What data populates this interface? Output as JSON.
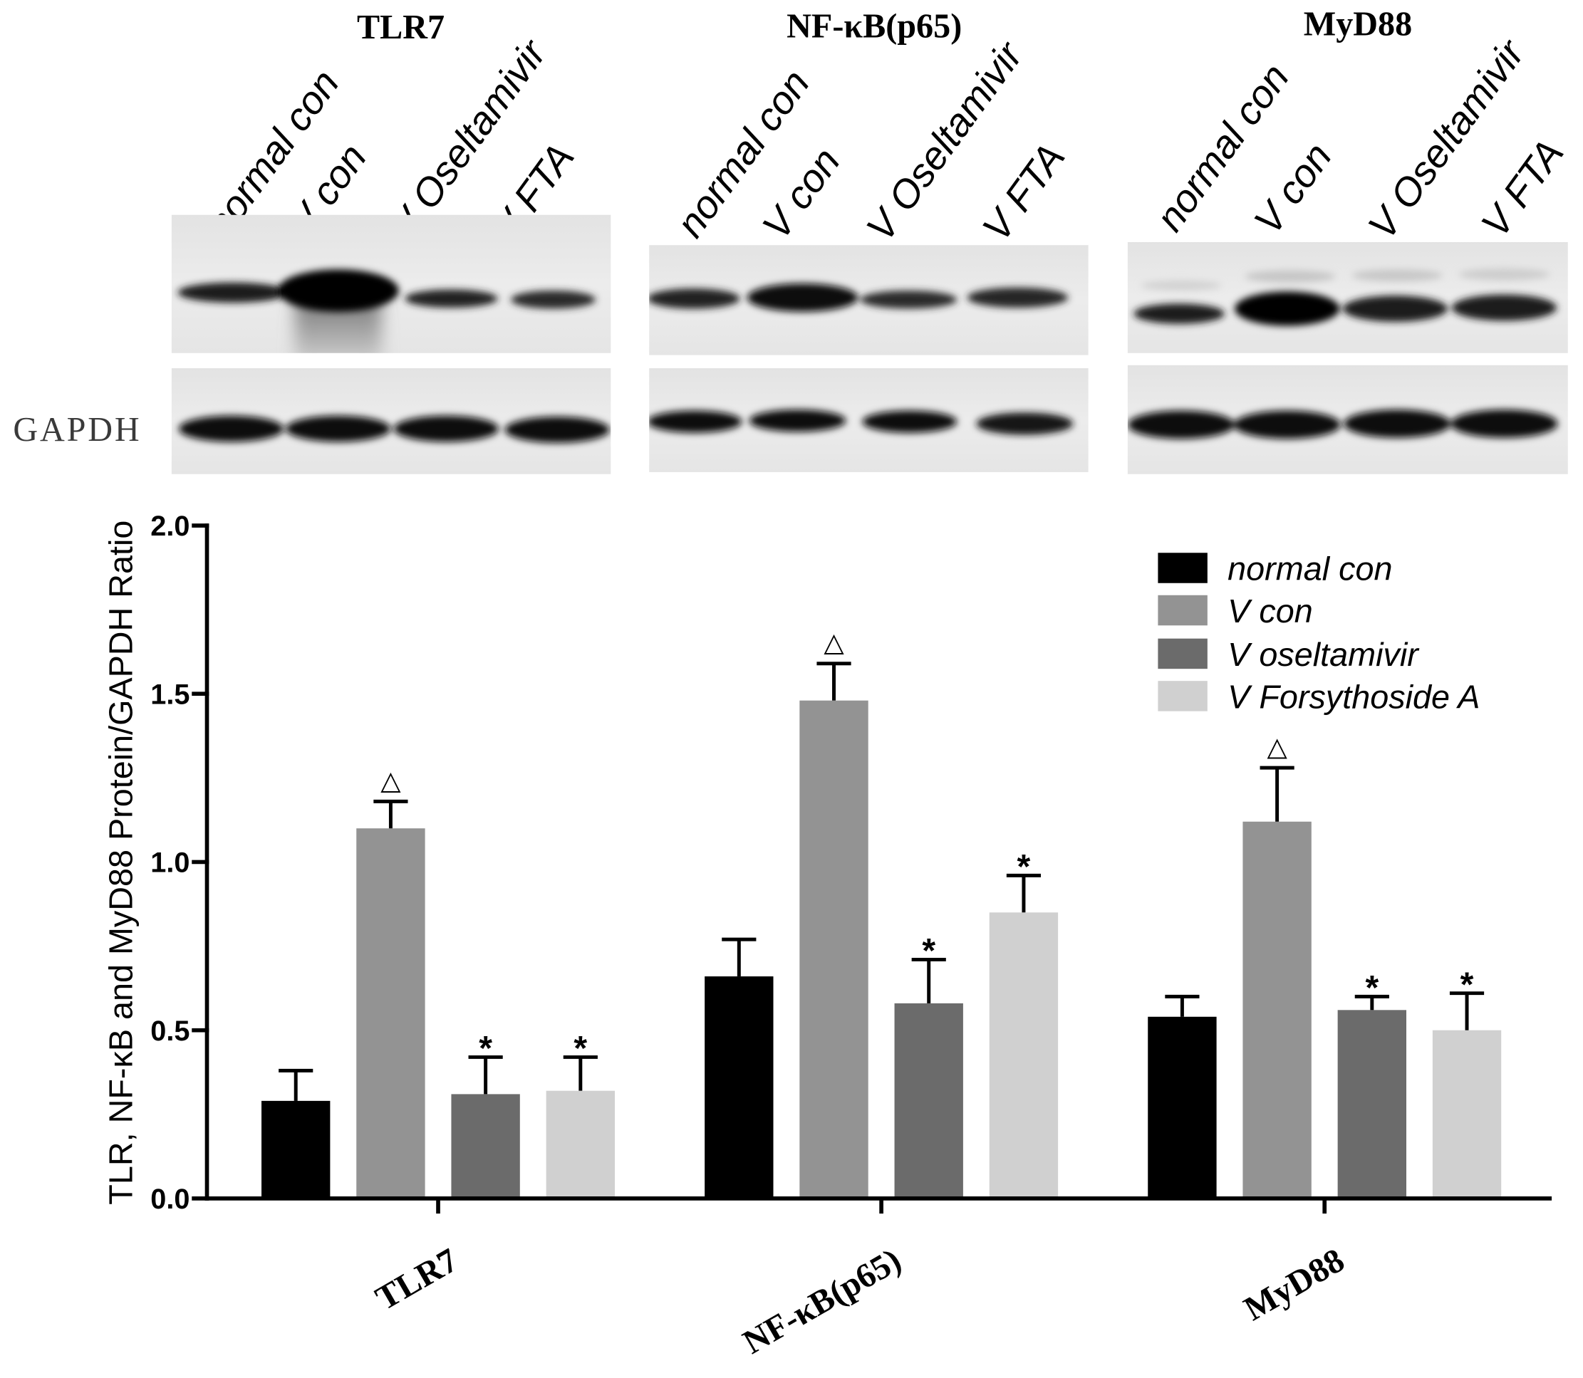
{
  "blots": {
    "loading_control_label": "GAPDH",
    "panels": [
      {
        "title": "TLR7",
        "lanes": [
          "normal con",
          "V con",
          "V Oseltamivir",
          "V FTA"
        ]
      },
      {
        "title": "NF-κB(p65)",
        "lanes": [
          "normal con",
          "V con",
          "V Oseltamivir",
          "V FTA"
        ]
      },
      {
        "title": "MyD88",
        "lanes": [
          "normal con",
          "V con",
          "V Oseltamivir",
          "V FTA"
        ]
      }
    ]
  },
  "chart_data": {
    "type": "bar",
    "categories": [
      "TLR7",
      "NF-κB(p65)",
      "MyD88"
    ],
    "series": [
      {
        "name": "normal con",
        "color": "#000000",
        "values": [
          0.29,
          0.66,
          0.54
        ],
        "error_plus": [
          0.09,
          0.11,
          0.06
        ]
      },
      {
        "name": "V con",
        "color": "#939393",
        "values": [
          1.1,
          1.48,
          1.12
        ],
        "error_plus": [
          0.08,
          0.11,
          0.16
        ],
        "annotations": [
          "△",
          "△",
          "△"
        ]
      },
      {
        "name": "V oseltamivir",
        "color": "#6b6b6b",
        "values": [
          0.31,
          0.58,
          0.56
        ],
        "error_plus": [
          0.11,
          0.13,
          0.04
        ],
        "annotations": [
          "*",
          "*",
          "*"
        ]
      },
      {
        "name": "V Forsythoside A",
        "color": "#d0d0d0",
        "values": [
          0.32,
          0.85,
          0.5
        ],
        "error_plus": [
          0.1,
          0.11,
          0.11
        ],
        "annotations": [
          "*",
          "*",
          "*"
        ]
      }
    ],
    "ylabel": "TLR, NF-κB and MyD88 Protein/GAPDH Ratio",
    "ylim": [
      0,
      2.0
    ],
    "yticks": [
      "0.0",
      "0.5",
      "1.0",
      "1.5",
      "2.0"
    ],
    "legend_position": "top-right",
    "grid": false
  }
}
